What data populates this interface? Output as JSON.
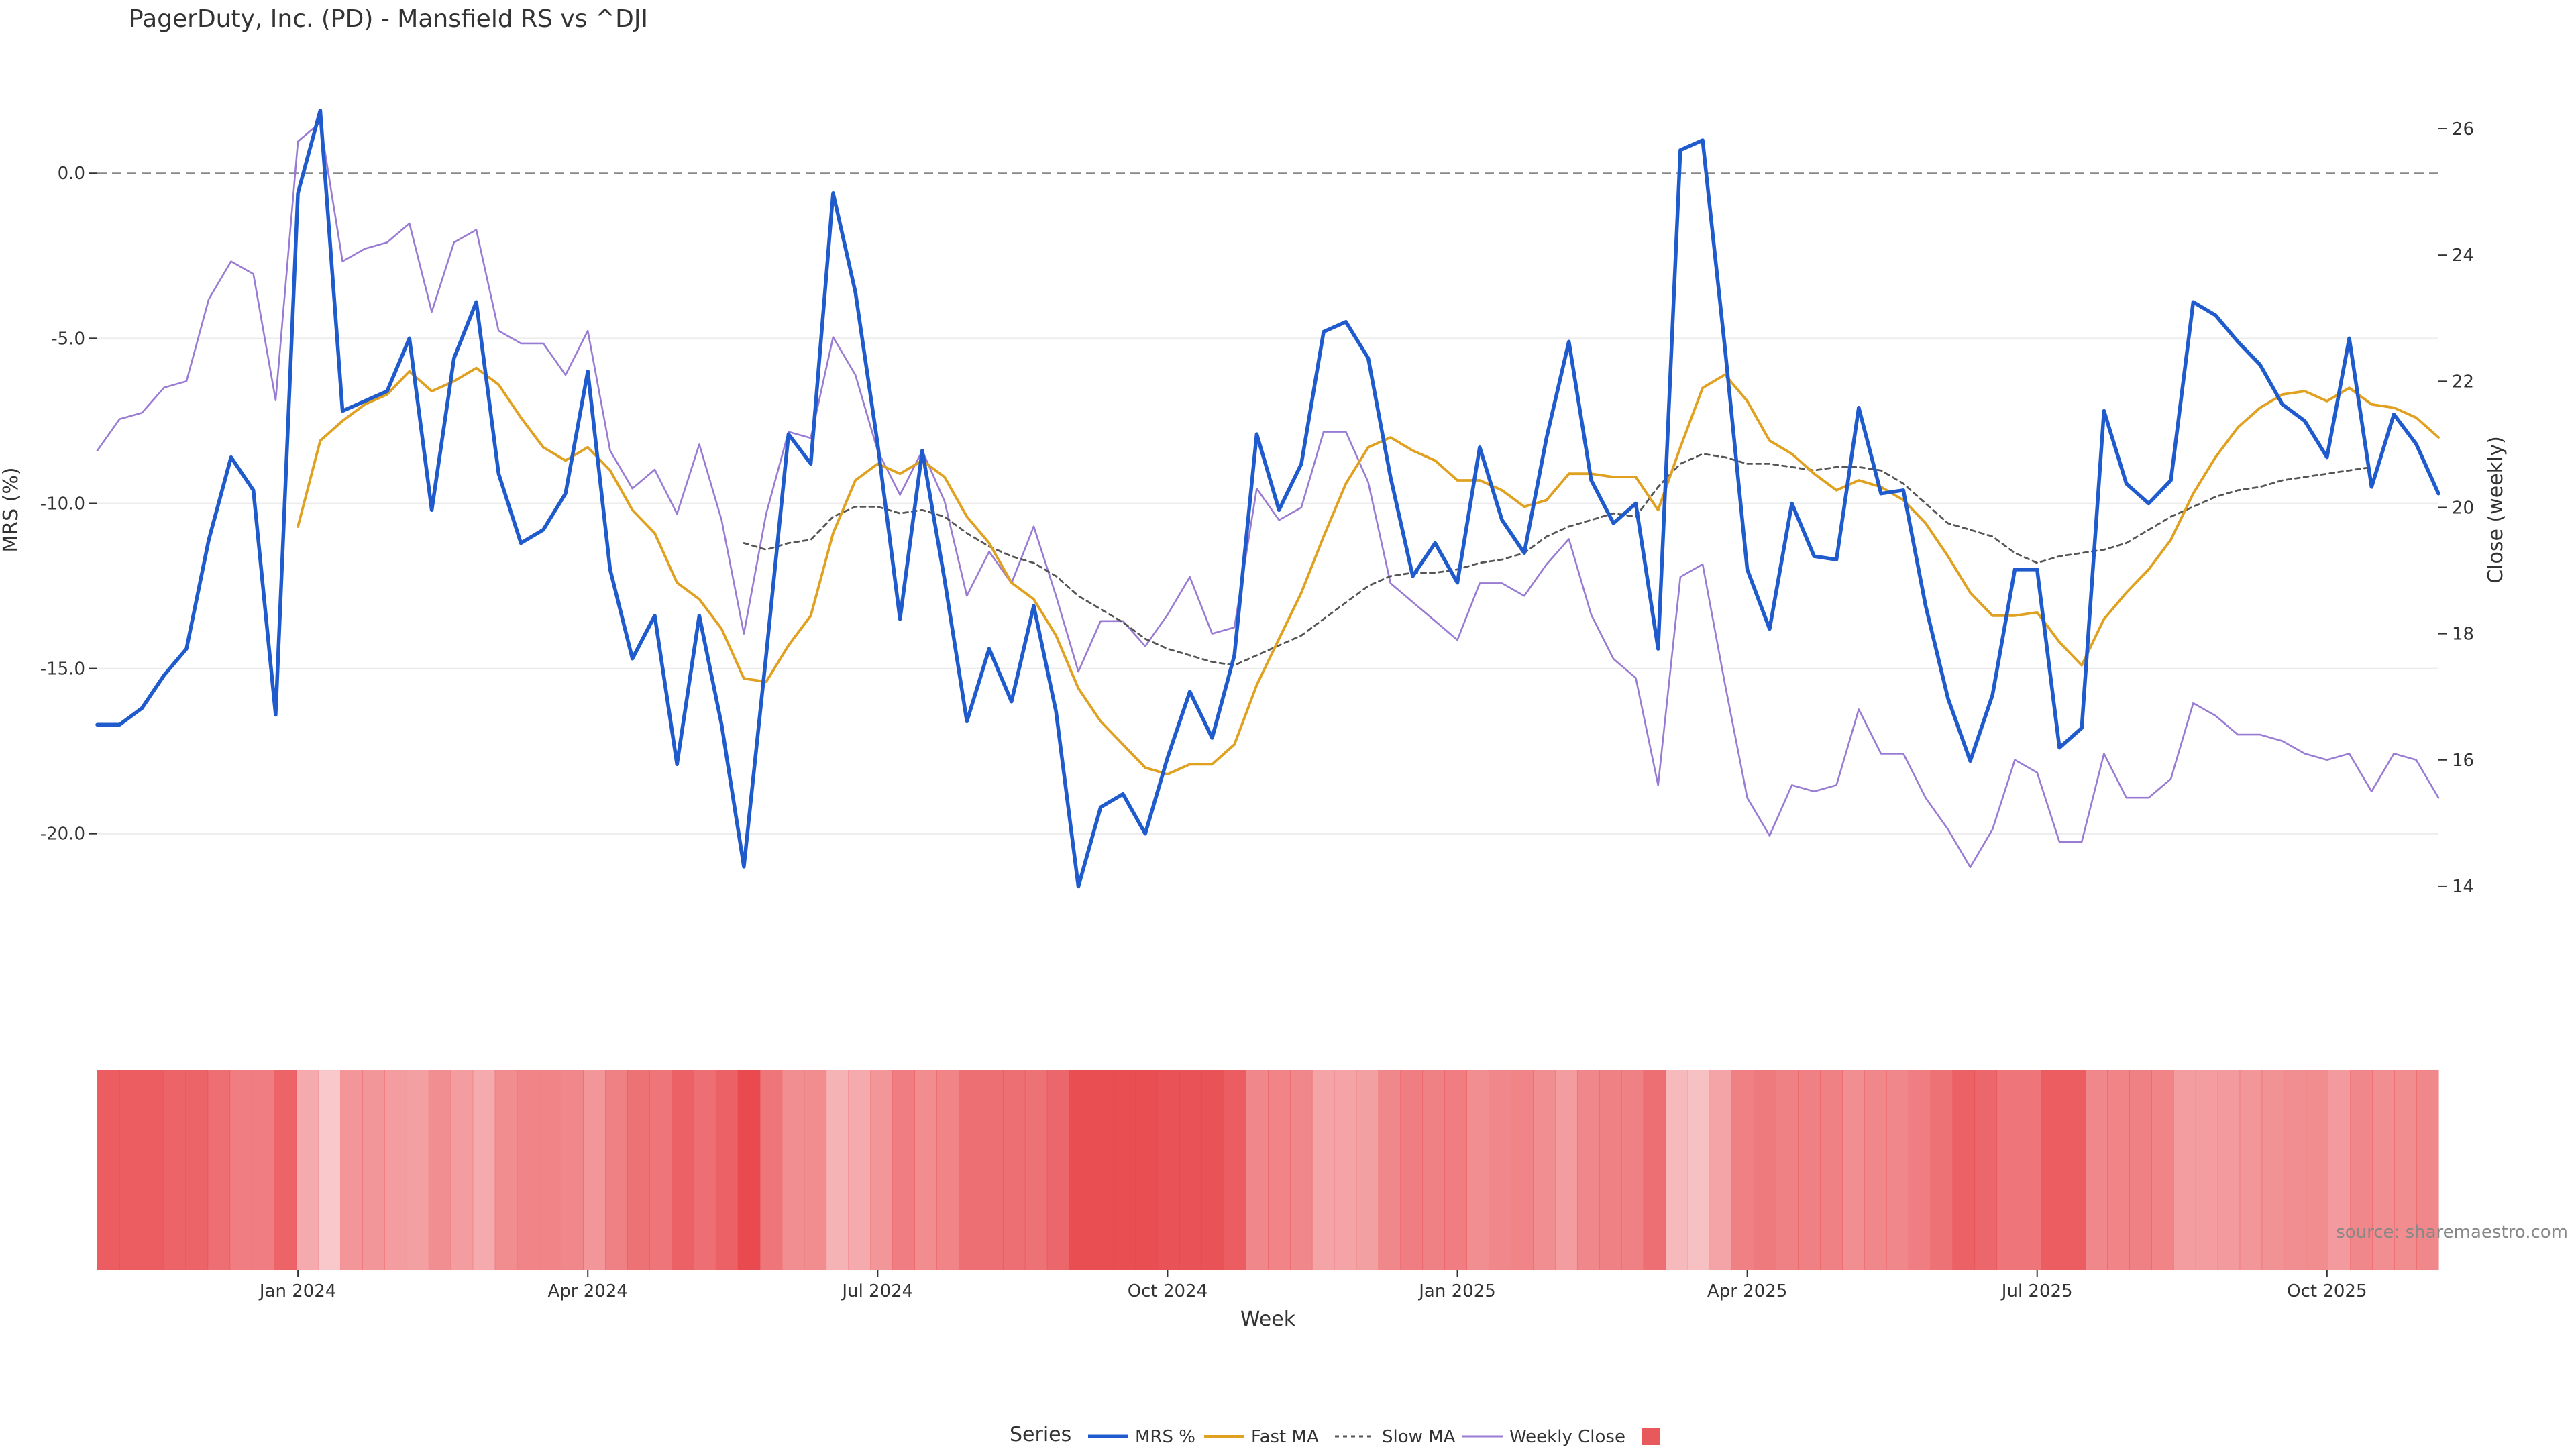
{
  "chart_data": {
    "type": "line",
    "title": "PagerDuty, Inc. (PD) - Mansfield RS vs ^DJI",
    "xlabel": "Week",
    "ylabel_left": "MRS (%)",
    "ylabel_right": "Close (weekly)",
    "ylim_left": [
      -23.5,
      2.3
    ],
    "ylim_right": [
      13.0,
      26.5
    ],
    "yticks_left": [
      "0.0",
      "-5.0",
      "-10.0",
      "-15.0",
      "-20.0"
    ],
    "yticks_left_values": [
      0,
      -5,
      -10,
      -15,
      -20
    ],
    "yticks_right": [
      "26",
      "24",
      "22",
      "20",
      "18",
      "16",
      "14"
    ],
    "yticks_right_values": [
      26,
      24,
      22,
      20,
      18,
      16,
      14
    ],
    "xticks": [
      "Jan 2024",
      "Apr 2024",
      "Jul 2024",
      "Oct 2024",
      "Jan 2025",
      "Apr 2025",
      "Jul 2025",
      "Oct 2025"
    ],
    "xticks_week_index": [
      9,
      22,
      35,
      48,
      61,
      74,
      87,
      100
    ],
    "zero_line": 0,
    "num_weeks": 106,
    "series": [
      {
        "name": "MRS %",
        "axis": "left",
        "color": "#1f5bcc",
        "style": "solid",
        "values": [
          -16.7,
          -16.7,
          -16.2,
          -15.2,
          -14.4,
          -11.1,
          -8.6,
          -9.6,
          -16.4,
          -0.6,
          1.9,
          -7.2,
          -6.9,
          -6.6,
          -5.0,
          -10.2,
          -5.6,
          -3.9,
          -9.1,
          -11.2,
          -10.8,
          -9.7,
          -6.0,
          -12.0,
          -14.7,
          -13.4,
          -17.9,
          -13.4,
          -16.7,
          -21.0,
          -14.6,
          -7.9,
          -8.8,
          -0.6,
          -3.6,
          -8.2,
          -13.5,
          -8.4,
          -12.3,
          -16.6,
          -14.4,
          -16.0,
          -13.1,
          -16.3,
          -21.6,
          -19.2,
          -18.8,
          -20.0,
          -17.7,
          -15.7,
          -17.1,
          -14.6,
          -7.9,
          -10.2,
          -8.8,
          -4.8,
          -4.5,
          -5.6,
          -9.2,
          -12.2,
          -11.2,
          -12.4,
          -8.3,
          -10.5,
          -11.5,
          -8.0,
          -5.1,
          -9.3,
          -10.6,
          -10.0,
          -14.4,
          0.7,
          1.0,
          -5.3,
          -12.0,
          -13.8,
          -10.0,
          -11.6,
          -11.7,
          -7.1,
          -9.7,
          -9.6,
          -13.1,
          -15.9,
          -17.8,
          -15.8,
          -12.0,
          -12.0,
          -17.4,
          -16.8,
          -7.2,
          -9.4,
          -10.0,
          -9.3,
          -3.9,
          -4.3,
          -5.1,
          -5.8,
          -7.0,
          -7.5,
          -8.6,
          -5.0,
          -9.5,
          -7.3,
          -8.2,
          -9.7
        ]
      },
      {
        "name": "Fast MA",
        "axis": "left",
        "color": "#e0a020",
        "style": "solid",
        "start_index": 9,
        "values": [
          -10.7,
          -8.1,
          -7.5,
          -7.0,
          -6.7,
          -6.0,
          -6.6,
          -6.3,
          -5.9,
          -6.4,
          -7.4,
          -8.3,
          -8.7,
          -8.3,
          -9.0,
          -10.2,
          -10.9,
          -12.4,
          -12.9,
          -13.8,
          -15.3,
          -15.4,
          -14.3,
          -13.4,
          -10.9,
          -9.3,
          -8.8,
          -9.1,
          -8.7,
          -9.2,
          -10.4,
          -11.2,
          -12.4,
          -12.9,
          -14.0,
          -15.6,
          -16.6,
          -17.3,
          -18.0,
          -18.2,
          -17.9,
          -17.9,
          -17.3,
          -15.5,
          -14.1,
          -12.7,
          -11.0,
          -9.4,
          -8.3,
          -8.0,
          -8.4,
          -8.7,
          -9.3,
          -9.3,
          -9.6,
          -10.1,
          -9.9,
          -9.1,
          -9.1,
          -9.2,
          -9.2,
          -10.2,
          -8.3,
          -6.5,
          -6.1,
          -6.9,
          -8.1,
          -8.5,
          -9.1,
          -9.6,
          -9.3,
          -9.5,
          -9.9,
          -10.6,
          -11.6,
          -12.7,
          -13.4,
          -13.4,
          -13.3,
          -14.2,
          -14.9,
          -13.5,
          -12.7,
          -12.0,
          -11.1,
          -9.7,
          -8.6,
          -7.7,
          -7.1,
          -6.7,
          -6.6,
          -6.9,
          -6.5,
          -7.0,
          -7.1,
          -7.4,
          -8.0
        ]
      },
      {
        "name": "Slow MA",
        "axis": "left",
        "color": "#555555",
        "style": "dotted",
        "start_index": 29,
        "values": [
          -11.2,
          -11.4,
          -11.2,
          -11.1,
          -10.4,
          -10.1,
          -10.1,
          -10.3,
          -10.2,
          -10.4,
          -10.9,
          -11.3,
          -11.6,
          -11.8,
          -12.2,
          -12.8,
          -13.2,
          -13.6,
          -14.1,
          -14.4,
          -14.6,
          -14.8,
          -14.9,
          -14.6,
          -14.3,
          -14.0,
          -13.5,
          -13.0,
          -12.5,
          -12.2,
          -12.1,
          -12.1,
          -12.0,
          -11.8,
          -11.7,
          -11.5,
          -11.0,
          -10.7,
          -10.5,
          -10.3,
          -10.4,
          -9.5,
          -8.8,
          -8.5,
          -8.6,
          -8.8,
          -8.8,
          -8.9,
          -9.0,
          -8.9,
          -8.9,
          -9.0,
          -9.4,
          -10.0,
          -10.6,
          -10.8,
          -11.0,
          -11.5,
          -11.8,
          -11.6,
          -11.5,
          -11.4,
          -11.2,
          -10.8,
          -10.4,
          -10.1,
          -9.8,
          -9.6,
          -9.5,
          -9.3,
          -9.2,
          -9.1,
          -9.0,
          -8.9
        ]
      },
      {
        "name": "Weekly Close",
        "axis": "right",
        "color": "#9a7bd4",
        "style": "solid",
        "values": [
          20.9,
          21.4,
          21.5,
          21.9,
          22.0,
          23.3,
          23.9,
          23.7,
          21.7,
          25.8,
          26.1,
          23.9,
          24.1,
          24.2,
          24.5,
          23.1,
          24.2,
          24.4,
          22.8,
          22.6,
          22.6,
          22.1,
          22.8,
          20.9,
          20.3,
          20.6,
          19.9,
          21.0,
          19.8,
          18.0,
          19.9,
          21.2,
          21.1,
          22.7,
          22.1,
          20.9,
          20.2,
          20.9,
          20.1,
          18.6,
          19.3,
          18.8,
          19.7,
          18.6,
          17.4,
          18.2,
          18.2,
          17.8,
          18.3,
          18.9,
          18.0,
          18.1,
          20.3,
          19.8,
          20.0,
          21.2,
          21.2,
          20.4,
          18.8,
          18.5,
          18.2,
          17.9,
          18.8,
          18.8,
          18.6,
          19.1,
          19.5,
          18.3,
          17.6,
          17.3,
          15.6,
          18.9,
          19.1,
          17.2,
          15.4,
          14.8,
          15.6,
          15.5,
          15.6,
          16.8,
          16.1,
          16.1,
          15.4,
          14.9,
          14.3,
          14.9,
          16.0,
          15.8,
          14.7,
          14.7,
          16.1,
          15.4,
          15.4,
          15.7,
          16.9,
          16.7,
          16.4,
          16.4,
          16.3,
          16.1,
          16.0,
          16.1,
          15.5,
          16.1,
          16.0,
          15.4
        ]
      },
      {
        "name": "",
        "axis": "band",
        "color": "#e8474c",
        "style": "heat",
        "values": [
          0.85,
          0.85,
          0.85,
          0.8,
          0.8,
          0.72,
          0.62,
          0.62,
          0.8,
          0.3,
          0.1,
          0.45,
          0.45,
          0.4,
          0.38,
          0.5,
          0.4,
          0.3,
          0.52,
          0.58,
          0.58,
          0.55,
          0.45,
          0.6,
          0.7,
          0.68,
          0.82,
          0.72,
          0.82,
          0.98,
          0.68,
          0.5,
          0.52,
          0.25,
          0.3,
          0.45,
          0.62,
          0.52,
          0.58,
          0.72,
          0.72,
          0.72,
          0.7,
          0.78,
          0.95,
          0.95,
          0.95,
          0.95,
          0.92,
          0.92,
          0.92,
          0.85,
          0.55,
          0.58,
          0.55,
          0.35,
          0.35,
          0.38,
          0.55,
          0.62,
          0.6,
          0.62,
          0.5,
          0.55,
          0.58,
          0.5,
          0.4,
          0.55,
          0.6,
          0.6,
          0.72,
          0.2,
          0.15,
          0.35,
          0.6,
          0.65,
          0.6,
          0.6,
          0.6,
          0.5,
          0.55,
          0.55,
          0.62,
          0.7,
          0.82,
          0.78,
          0.68,
          0.68,
          0.85,
          0.85,
          0.55,
          0.58,
          0.6,
          0.58,
          0.4,
          0.4,
          0.42,
          0.45,
          0.48,
          0.5,
          0.52,
          0.42,
          0.55,
          0.5,
          0.52,
          0.55
        ]
      }
    ],
    "legend": {
      "title": "Series",
      "position": "bottom-center",
      "items": [
        "MRS %",
        "Fast MA",
        "Slow MA",
        "Weekly Close",
        ""
      ]
    },
    "source_label": "source: sharemaestro.com"
  }
}
